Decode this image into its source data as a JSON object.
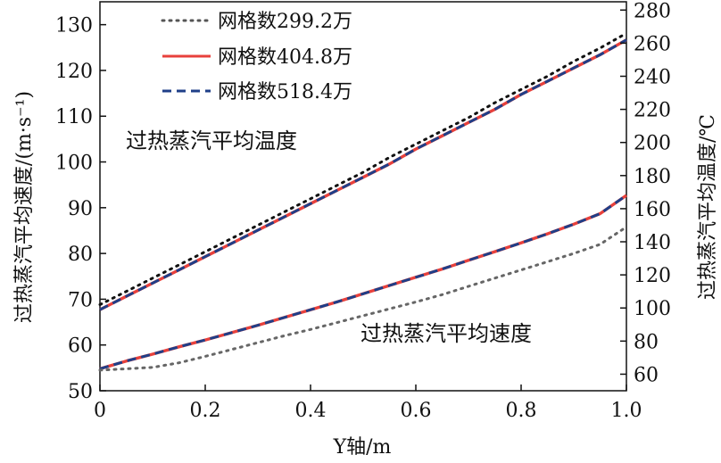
{
  "chart_data": {
    "type": "line",
    "x": [
      0,
      0.05,
      0.1,
      0.15,
      0.2,
      0.25,
      0.3,
      0.35,
      0.4,
      0.45,
      0.5,
      0.55,
      0.6,
      0.65,
      0.7,
      0.75,
      0.8,
      0.85,
      0.9,
      0.95,
      1.0
    ],
    "xlabel": "Y轴/m",
    "xlim": [
      0,
      1.0
    ],
    "xticks": [
      "0",
      "0.2",
      "0.4",
      "0.6",
      "0.8",
      "1.0"
    ],
    "ylabel_left": "过热蒸汽平均速度/(m·s⁻¹)",
    "ylim_left": [
      50,
      135
    ],
    "yticks_left": [
      "50",
      "60",
      "70",
      "80",
      "90",
      "100",
      "110",
      "120",
      "130"
    ],
    "ylabel_right": "过热蒸汽平均温度/℃",
    "ylim_right": [
      50,
      285
    ],
    "yticks_right": [
      "60",
      "80",
      "100",
      "120",
      "140",
      "160",
      "180",
      "200",
      "220",
      "240",
      "260",
      "280"
    ],
    "annotations": {
      "temperature": "过热蒸汽平均温度",
      "velocity": "过热蒸汽平均速度"
    },
    "legend": {
      "position": "top-left",
      "items": [
        {
          "label": "网格数299.2万",
          "color": "#333333",
          "style": "dotted"
        },
        {
          "label": "网格数404.8万",
          "color": "#e8413c",
          "style": "solid"
        },
        {
          "label": "网格数518.4万",
          "color": "#1f3f88",
          "style": "dashed"
        }
      ]
    },
    "series": [
      {
        "quantity": "temperature",
        "axis": "right",
        "mesh": "299.2万",
        "color": "#111111",
        "style": "dotted",
        "values": [
          102,
          110,
          118,
          126,
          134,
          142,
          150,
          158,
          166,
          174,
          182,
          191,
          199,
          207,
          215,
          224,
          232,
          240,
          249,
          257,
          266
        ]
      },
      {
        "quantity": "temperature",
        "axis": "right",
        "mesh": "404.8万",
        "color": "#e8413c",
        "style": "solid",
        "values": [
          99,
          107,
          115,
          123,
          131,
          139,
          147,
          155,
          163,
          171,
          179,
          187,
          196,
          204,
          212,
          220,
          229,
          237,
          245,
          253,
          262
        ]
      },
      {
        "quantity": "temperature",
        "axis": "right",
        "mesh": "518.4万",
        "color": "#1f3f88",
        "style": "dashed",
        "values": [
          99,
          107,
          115,
          123,
          131,
          139,
          147,
          155,
          163,
          171,
          179,
          187,
          196,
          204,
          212,
          220,
          229,
          237,
          245,
          253,
          262
        ]
      },
      {
        "quantity": "velocity",
        "axis": "left",
        "mesh": "299.2万",
        "color": "#666666",
        "style": "dotted",
        "values": [
          54.5,
          54.8,
          55.1,
          56.1,
          57.5,
          59.0,
          60.5,
          62.0,
          63.4,
          64.9,
          66.4,
          67.9,
          69.4,
          71.0,
          72.8,
          74.6,
          76.4,
          78.2,
          80.0,
          82.0,
          85.8
        ]
      },
      {
        "quantity": "velocity",
        "axis": "left",
        "mesh": "404.8万",
        "color": "#e8413c",
        "style": "solid",
        "values": [
          54.8,
          56.5,
          58.0,
          59.6,
          61.1,
          62.7,
          64.3,
          66.0,
          67.7,
          69.4,
          71.2,
          73.0,
          74.8,
          76.6,
          78.5,
          80.4,
          82.3,
          84.3,
          86.4,
          88.7,
          92.7
        ]
      },
      {
        "quantity": "velocity",
        "axis": "left",
        "mesh": "518.4万",
        "color": "#1f3f88",
        "style": "dashed",
        "values": [
          54.8,
          56.5,
          58.0,
          59.6,
          61.1,
          62.7,
          64.3,
          66.0,
          67.7,
          69.4,
          71.2,
          73.0,
          74.8,
          76.6,
          78.5,
          80.4,
          82.3,
          84.3,
          86.4,
          88.7,
          92.7
        ]
      }
    ]
  }
}
